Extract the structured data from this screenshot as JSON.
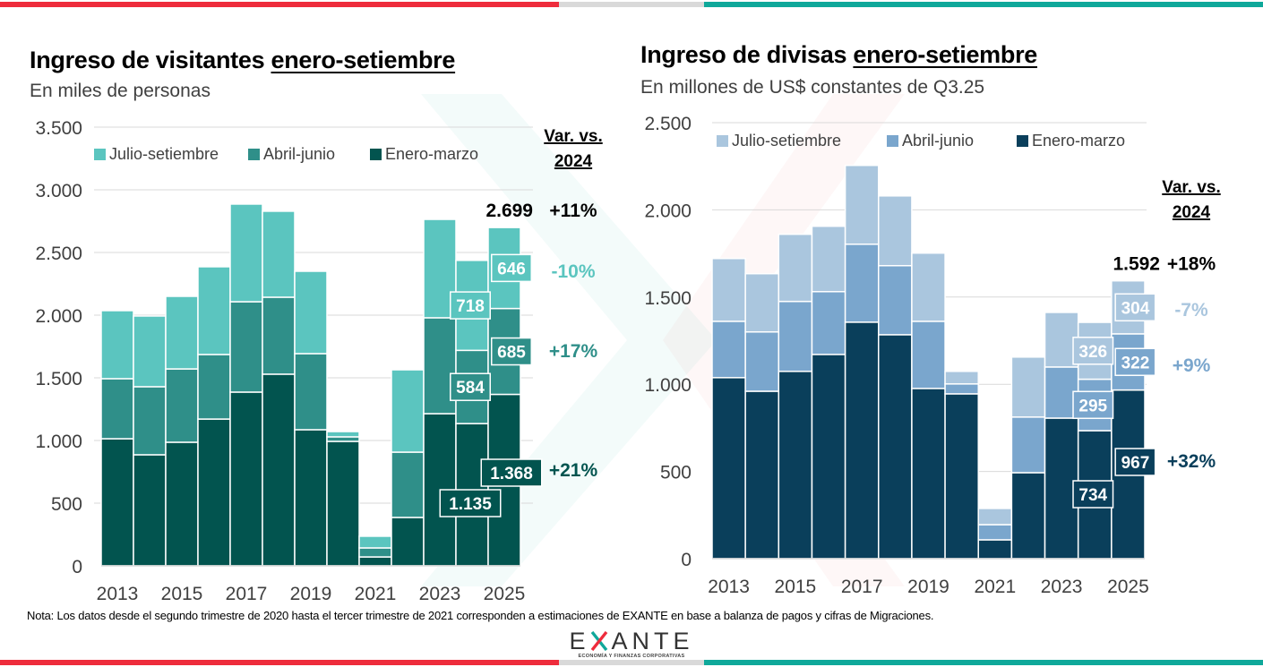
{
  "colors": {
    "red": "#ee2c3c",
    "gray": "#d9d9d9",
    "teal": "#0fa89a",
    "left_js": "#5bc5bf",
    "left_aj": "#2f8f89",
    "left_em": "#02544f",
    "right_js": "#aac6de",
    "right_aj": "#7aa6cd",
    "right_em": "#0a3f5b",
    "neg_left": "#5bc5bf",
    "neg_right": "#aac6de"
  },
  "footer": {
    "note": "Nota: Los datos desde el segundo trimestre de 2020 hasta el tercer trimestre de 2021 corresponden a estimaciones de EXANTE en base a balanza de pagos y cifras de Migraciones.",
    "logo_text_pre": "E",
    "logo_text_post": "ANTE",
    "logo_tagline": "ECONOMÍA Y FINANZAS CORPORATIVAS"
  },
  "chart_data": [
    {
      "type": "bar",
      "stacked": true,
      "title_plain": "Ingreso de visitantes ",
      "title_underlined": "enero-setiembre",
      "subtitle": "En miles de personas",
      "xlabel": "",
      "ylabel": "",
      "ylim": [
        0,
        3500
      ],
      "yticks": [
        0,
        500,
        1000,
        1500,
        2000,
        2500,
        3000,
        3500
      ],
      "ytick_labels": [
        "0",
        "500",
        "1.000",
        "1.500",
        "2.000",
        "2.500",
        "3.000",
        "3.500"
      ],
      "grid": true,
      "legend_position": "top",
      "categories": [
        "2013",
        "2014",
        "2015",
        "2016",
        "2017",
        "2018",
        "2019",
        "2020",
        "2021",
        "2022",
        "2023",
        "2024",
        "2025"
      ],
      "xtick_labels": [
        "2013",
        "2015",
        "2017",
        "2019",
        "2021",
        "2023",
        "2025"
      ],
      "series": [
        {
          "name": "Enero-marzo",
          "values": [
            1014,
            886,
            986,
            1171,
            1386,
            1529,
            1086,
            993,
            71,
            386,
            1214,
            1135,
            1368
          ]
        },
        {
          "name": "Abril-junio",
          "values": [
            479,
            543,
            585,
            515,
            721,
            614,
            607,
            36,
            72,
            521,
            765,
            584,
            685
          ]
        },
        {
          "name": "Julio-setiembre",
          "values": [
            543,
            564,
            579,
            700,
            779,
            686,
            657,
            42,
            93,
            657,
            785,
            718,
            646
          ]
        }
      ],
      "legend_order": [
        "Julio-setiembre",
        "Abril-junio",
        "Enero-marzo"
      ],
      "data_labels": [
        {
          "category": "2024",
          "series": "Julio-setiembre",
          "text": "718"
        },
        {
          "category": "2024",
          "series": "Abril-junio",
          "text": "584"
        },
        {
          "category": "2024",
          "series": "Enero-marzo",
          "text": "1.135"
        },
        {
          "category": "2025",
          "series": "Julio-setiembre",
          "text": "646"
        },
        {
          "category": "2025",
          "series": "Abril-junio",
          "text": "685"
        },
        {
          "category": "2025",
          "series": "Enero-marzo",
          "text": "1.368"
        }
      ],
      "total_label": "2.699",
      "variation_header": [
        "Var. vs.",
        "2024"
      ],
      "variations": {
        "total": "+11%",
        "Julio-setiembre": "-10%",
        "Abril-junio": "+17%",
        "Enero-marzo": "+21%"
      }
    },
    {
      "type": "bar",
      "stacked": true,
      "title_plain": "Ingreso de divisas ",
      "title_underlined": "enero-setiembre",
      "subtitle": "En millones de US$ constantes de Q3.25",
      "xlabel": "",
      "ylabel": "",
      "ylim": [
        0,
        2500
      ],
      "yticks": [
        0,
        500,
        1000,
        1500,
        2000,
        2500
      ],
      "ytick_labels": [
        "0",
        "500",
        "1.000",
        "1.500",
        "2.000",
        "2.500"
      ],
      "grid": true,
      "legend_position": "top",
      "categories": [
        "2013",
        "2014",
        "2015",
        "2016",
        "2017",
        "2018",
        "2019",
        "2020",
        "2021",
        "2022",
        "2023",
        "2024",
        "2025"
      ],
      "xtick_labels": [
        "2013",
        "2015",
        "2017",
        "2019",
        "2021",
        "2023",
        "2025"
      ],
      "series": [
        {
          "name": "Enero-marzo",
          "values": [
            1038,
            960,
            1074,
            1171,
            1356,
            1284,
            976,
            945,
            108,
            493,
            806,
            734,
            967
          ]
        },
        {
          "name": "Abril-junio",
          "values": [
            323,
            340,
            401,
            360,
            447,
            396,
            385,
            57,
            87,
            319,
            293,
            295,
            322
          ]
        },
        {
          "name": "Julio-setiembre",
          "values": [
            360,
            334,
            385,
            375,
            452,
            400,
            391,
            72,
            93,
            344,
            313,
            326,
            304
          ]
        }
      ],
      "legend_order": [
        "Julio-setiembre",
        "Abril-junio",
        "Enero-marzo"
      ],
      "data_labels": [
        {
          "category": "2024",
          "series": "Julio-setiembre",
          "text": "326"
        },
        {
          "category": "2024",
          "series": "Abril-junio",
          "text": "295"
        },
        {
          "category": "2024",
          "series": "Enero-marzo",
          "text": "734"
        },
        {
          "category": "2025",
          "series": "Julio-setiembre",
          "text": "304"
        },
        {
          "category": "2025",
          "series": "Abril-junio",
          "text": "322"
        },
        {
          "category": "2025",
          "series": "Enero-marzo",
          "text": "967"
        }
      ],
      "total_label": "1.592",
      "variation_header": [
        "Var. vs.",
        "2024"
      ],
      "variations": {
        "total": "+18%",
        "Julio-setiembre": "-7%",
        "Abril-junio": "+9%",
        "Enero-marzo": "+32%"
      }
    }
  ]
}
